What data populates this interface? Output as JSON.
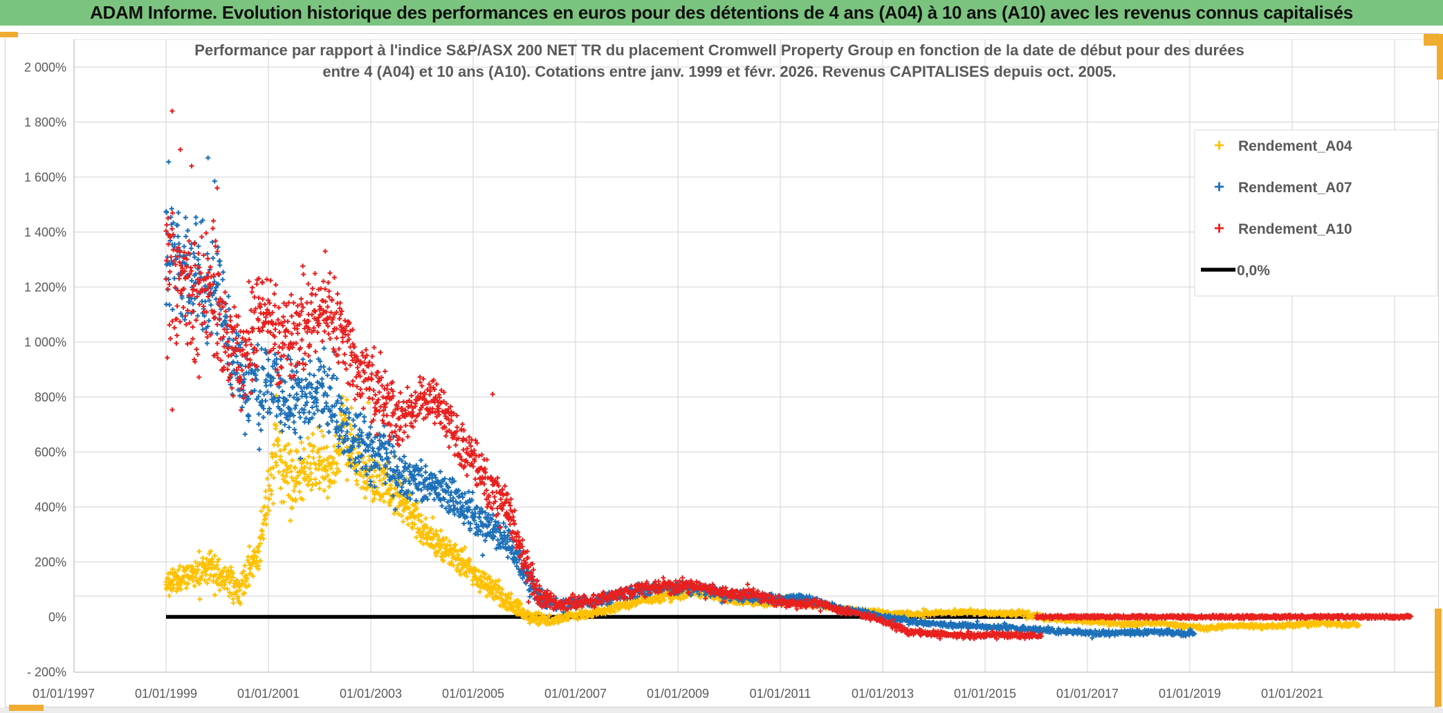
{
  "header": {
    "title": "ADAM Informe. Evolution historique des performances en euros pour des détentions de 4 ans (A04) à 10 ans (A10) avec les revenus connus capitalisés"
  },
  "colors": {
    "header_bg": "#7BC47F",
    "grid": "#D9D9D9",
    "axis_line": "#C0C0C0",
    "text": "#595959",
    "frame_accent": "#F0AC30",
    "series_a04": "#FFC000",
    "series_a07": "#1D70B8",
    "series_a10": "#E8201E",
    "zero_line": "#000000"
  },
  "chart_data": {
    "type": "scatter",
    "title_line1": "Performance par rapport à l'indice S&P/ASX 200 NET TR  du placement Cromwell Property Group en fonction de la date de début pour des durées",
    "title_line2": "entre 4 (A04) et 10 ans (A10). Cotations entre janv. 1999 et févr. 2026. Revenus CAPITALISES depuis oct. 2005.",
    "x_axis": {
      "tick_labels": [
        "01/01/1997",
        "01/01/1999",
        "01/01/2001",
        "01/01/2003",
        "01/01/2005",
        "01/01/2007",
        "01/01/2009",
        "01/01/2011",
        "01/01/2013",
        "01/01/2015",
        "01/01/2017",
        "01/01/2019",
        "01/01/2021"
      ],
      "tick_years": [
        1997,
        1999,
        2001,
        2003,
        2005,
        2007,
        2009,
        2011,
        2013,
        2015,
        2017,
        2019,
        2021
      ],
      "gridline_years_to": 2023,
      "data_start_year": 1999.0,
      "data_end_year": 2023.32
    },
    "y_axis": {
      "tick_labels": [
        "2 000%",
        "1 800%",
        "1 600%",
        "1 400%",
        "1 200%",
        "1 000%",
        "800%",
        "600%",
        "400%",
        "200%",
        "0%",
        "- 200%"
      ],
      "tick_values": [
        2000,
        1800,
        1600,
        1400,
        1200,
        1000,
        800,
        600,
        400,
        200,
        0,
        -200
      ],
      "min": -200,
      "max": 2000,
      "extra_line_value": 75.5
    },
    "series": [
      {
        "name": "Rendement_A04",
        "color": "#FFC000",
        "marker": "plus",
        "max_value": 820,
        "anchors": [
          [
            1999.0,
            120,
            45
          ],
          [
            1999.4,
            150,
            55
          ],
          [
            1999.8,
            185,
            60
          ],
          [
            2000.1,
            150,
            60
          ],
          [
            2000.45,
            95,
            55
          ],
          [
            2000.8,
            230,
            80
          ],
          [
            2001.15,
            600,
            150
          ],
          [
            2001.5,
            480,
            110
          ],
          [
            2001.9,
            580,
            120
          ],
          [
            2002.2,
            530,
            110
          ],
          [
            2002.5,
            680,
            120
          ],
          [
            2002.8,
            520,
            110
          ],
          [
            2003.2,
            500,
            90
          ],
          [
            2003.7,
            400,
            70
          ],
          [
            2004.2,
            280,
            60
          ],
          [
            2004.7,
            210,
            50
          ],
          [
            2005.3,
            110,
            45
          ],
          [
            2005.7,
            55,
            35
          ],
          [
            2006.1,
            -5,
            25
          ],
          [
            2006.5,
            -10,
            18
          ],
          [
            2007.0,
            5,
            15
          ],
          [
            2007.5,
            20,
            15
          ],
          [
            2008.0,
            45,
            18
          ],
          [
            2008.6,
            70,
            20
          ],
          [
            2009.2,
            90,
            22
          ],
          [
            2009.7,
            80,
            20
          ],
          [
            2010.2,
            55,
            16
          ],
          [
            2010.7,
            50,
            14
          ],
          [
            2011.2,
            62,
            14
          ],
          [
            2011.7,
            45,
            12
          ],
          [
            2012.2,
            30,
            12
          ],
          [
            2012.7,
            20,
            10
          ],
          [
            2013.2,
            12,
            10
          ],
          [
            2013.7,
            10,
            10
          ],
          [
            2014.2,
            16,
            10
          ],
          [
            2014.7,
            18,
            10
          ],
          [
            2015.2,
            12,
            10
          ],
          [
            2015.7,
            14,
            12
          ],
          [
            2016.2,
            -5,
            12
          ],
          [
            2016.7,
            -12,
            10
          ],
          [
            2017.2,
            -18,
            10
          ],
          [
            2017.7,
            -28,
            10
          ],
          [
            2018.2,
            -22,
            10
          ],
          [
            2018.7,
            -28,
            10
          ],
          [
            2019.3,
            -42,
            10
          ],
          [
            2019.9,
            -32,
            10
          ],
          [
            2020.5,
            -36,
            10
          ],
          [
            2021.1,
            -28,
            10
          ],
          [
            2021.7,
            -24,
            10
          ],
          [
            2022.3,
            -30,
            8
          ]
        ],
        "extra_points": [
          [
            2001.15,
            805
          ],
          [
            2002.45,
            800
          ],
          [
            2002.62,
            760
          ],
          [
            2002.95,
            780
          ]
        ]
      },
      {
        "name": "Rendement_A07",
        "color": "#1D70B8",
        "marker": "plus",
        "max_value": 1690,
        "anchors": [
          [
            1999.0,
            1380,
            240
          ],
          [
            1999.35,
            1300,
            220
          ],
          [
            1999.7,
            1220,
            220
          ],
          [
            2000.0,
            1180,
            220
          ],
          [
            2000.3,
            950,
            170
          ],
          [
            2000.6,
            820,
            140
          ],
          [
            2001.0,
            850,
            150
          ],
          [
            2001.3,
            800,
            140
          ],
          [
            2001.7,
            780,
            140
          ],
          [
            2002.0,
            820,
            130
          ],
          [
            2002.3,
            740,
            120
          ],
          [
            2002.6,
            650,
            110
          ],
          [
            2002.9,
            620,
            120
          ],
          [
            2003.2,
            590,
            120
          ],
          [
            2003.5,
            520,
            100
          ],
          [
            2003.9,
            490,
            80
          ],
          [
            2004.3,
            465,
            70
          ],
          [
            2004.7,
            420,
            70
          ],
          [
            2005.1,
            360,
            70
          ],
          [
            2005.5,
            300,
            60
          ],
          [
            2005.8,
            245,
            50
          ],
          [
            2006.1,
            120,
            50
          ],
          [
            2006.4,
            60,
            30
          ],
          [
            2006.8,
            45,
            20
          ],
          [
            2007.2,
            55,
            20
          ],
          [
            2007.7,
            70,
            22
          ],
          [
            2008.2,
            95,
            25
          ],
          [
            2008.7,
            105,
            25
          ],
          [
            2009.2,
            105,
            28
          ],
          [
            2009.7,
            90,
            24
          ],
          [
            2010.2,
            75,
            20
          ],
          [
            2010.7,
            70,
            18
          ],
          [
            2011.1,
            62,
            15
          ],
          [
            2011.4,
            75,
            15
          ],
          [
            2011.8,
            48,
            14
          ],
          [
            2012.2,
            30,
            12
          ],
          [
            2012.6,
            18,
            10
          ],
          [
            2013.1,
            -2,
            10
          ],
          [
            2013.5,
            -14,
            10
          ],
          [
            2013.9,
            -24,
            10
          ],
          [
            2014.4,
            -30,
            10
          ],
          [
            2014.9,
            -34,
            10
          ],
          [
            2015.4,
            -38,
            10
          ],
          [
            2015.9,
            -46,
            10
          ],
          [
            2016.4,
            -52,
            10
          ],
          [
            2016.9,
            -57,
            10
          ],
          [
            2017.4,
            -60,
            10
          ],
          [
            2017.9,
            -57,
            10
          ],
          [
            2018.4,
            -55,
            10
          ],
          [
            2018.9,
            -60,
            10
          ],
          [
            2019.1,
            -57,
            10
          ]
        ],
        "extra_points": [
          [
            1999.05,
            1655
          ],
          [
            1999.82,
            1670
          ],
          [
            1999.95,
            1585
          ]
        ]
      },
      {
        "name": "Rendement_A10",
        "color": "#E8201E",
        "marker": "plus",
        "max_value": 1850,
        "anchors": [
          [
            1999.0,
            1200,
            290
          ],
          [
            1999.3,
            1250,
            250
          ],
          [
            1999.6,
            1100,
            250
          ],
          [
            1999.9,
            1200,
            250
          ],
          [
            2000.2,
            1000,
            220
          ],
          [
            2000.5,
            950,
            200
          ],
          [
            2000.9,
            1130,
            160
          ],
          [
            2001.2,
            1000,
            180
          ],
          [
            2001.5,
            1050,
            180
          ],
          [
            2001.9,
            1090,
            150
          ],
          [
            2002.2,
            1140,
            120
          ],
          [
            2002.5,
            1000,
            150
          ],
          [
            2002.8,
            900,
            150
          ],
          [
            2003.1,
            820,
            140
          ],
          [
            2003.5,
            720,
            110
          ],
          [
            2003.9,
            780,
            90
          ],
          [
            2004.2,
            790,
            80
          ],
          [
            2004.6,
            680,
            100
          ],
          [
            2005.0,
            570,
            90
          ],
          [
            2005.3,
            480,
            80
          ],
          [
            2005.7,
            390,
            80
          ],
          [
            2006.0,
            200,
            80
          ],
          [
            2006.3,
            70,
            40
          ],
          [
            2006.7,
            45,
            25
          ],
          [
            2007.1,
            55,
            25
          ],
          [
            2007.6,
            70,
            25
          ],
          [
            2008.1,
            95,
            28
          ],
          [
            2008.6,
            105,
            28
          ],
          [
            2009.1,
            115,
            30
          ],
          [
            2009.6,
            100,
            26
          ],
          [
            2010.1,
            80,
            22
          ],
          [
            2010.5,
            85,
            20
          ],
          [
            2010.9,
            55,
            18
          ],
          [
            2011.3,
            45,
            16
          ],
          [
            2011.7,
            50,
            15
          ],
          [
            2012.1,
            28,
            14
          ],
          [
            2012.5,
            12,
            12
          ],
          [
            2012.9,
            -8,
            12
          ],
          [
            2013.2,
            -32,
            14
          ],
          [
            2013.5,
            -52,
            12
          ],
          [
            2013.9,
            -60,
            12
          ],
          [
            2014.3,
            -65,
            10
          ],
          [
            2014.8,
            -70,
            10
          ],
          [
            2015.3,
            -65,
            10
          ],
          [
            2015.8,
            -68,
            10
          ],
          [
            2016.1,
            -70,
            9
          ]
        ],
        "extra_points": [
          [
            1999.12,
            1840
          ],
          [
            1999.28,
            1700
          ],
          [
            1999.5,
            1640
          ],
          [
            2000.0,
            1560
          ],
          [
            2003.4,
            850
          ],
          [
            2005.38,
            810
          ]
        ],
        "flat_zero": {
          "from": 2016.0,
          "to": 2023.32,
          "value": 0
        }
      },
      {
        "name": "0,0%",
        "color": "#000000",
        "marker": "line",
        "value": 0,
        "from": 1999.0,
        "to": 2023.32
      }
    ],
    "legend": {
      "entries": [
        {
          "label": "Rendement_A04",
          "marker": "plus",
          "color": "#FFC000"
        },
        {
          "label": "Rendement_A07",
          "marker": "plus",
          "color": "#1D70B8"
        },
        {
          "label": "Rendement_A10",
          "marker": "plus",
          "color": "#E8201E"
        },
        {
          "label": "0,0%",
          "marker": "line",
          "color": "#000000"
        }
      ]
    }
  }
}
